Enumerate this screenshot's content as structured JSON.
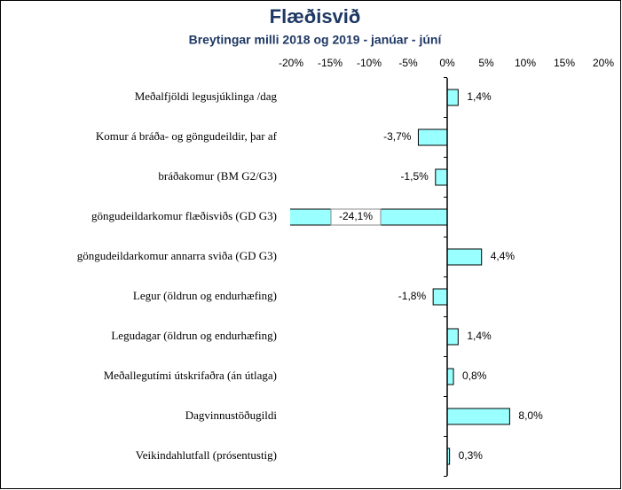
{
  "chart_data": {
    "type": "barh",
    "title": "Flæðisvið",
    "subtitle": "Breytingar milli 2018 og 2019 - janúar - júní",
    "categories": [
      "Meðalfjöldi legusjúklinga /dag",
      "Komur á bráða- og göngudeildir,  þar af",
      "bráðakomur (BM G2/G3)",
      "göngudeildarkomur flæðisviðs (GD G3)",
      "göngudeildarkomur annarra sviða (GD G3)",
      "Legur (öldrun og endurhæfing)",
      "Legudagar (öldrun og endurhæfing)",
      "Meðallegutími útskrifaðra (án útlaga)",
      "Dagvinnustöðugildi",
      "Veikindahlutfall (prósentustig)"
    ],
    "values": [
      1.4,
      -3.7,
      -1.5,
      -24.1,
      4.4,
      -1.8,
      1.4,
      0.8,
      8.0,
      0.3
    ],
    "value_labels": [
      "1,4%",
      "-3,7%",
      "-1,5%",
      "-24,1%",
      "4,4%",
      "-1,8%",
      "1,4%",
      "0,8%",
      "8,0%",
      "0,3%"
    ],
    "color": "#99ffff",
    "xlim": [
      -20,
      20
    ],
    "xticks": [
      {
        "value": -20,
        "label": "-20%"
      },
      {
        "value": -15,
        "label": "-15%"
      },
      {
        "value": -10,
        "label": "-10%"
      },
      {
        "value": -5,
        "label": "-5%"
      },
      {
        "value": 0,
        "label": "0%"
      },
      {
        "value": 5,
        "label": "5%"
      },
      {
        "value": 10,
        "label": "10%"
      },
      {
        "value": 15,
        "label": "15%"
      },
      {
        "value": 20,
        "label": "20%"
      }
    ]
  }
}
